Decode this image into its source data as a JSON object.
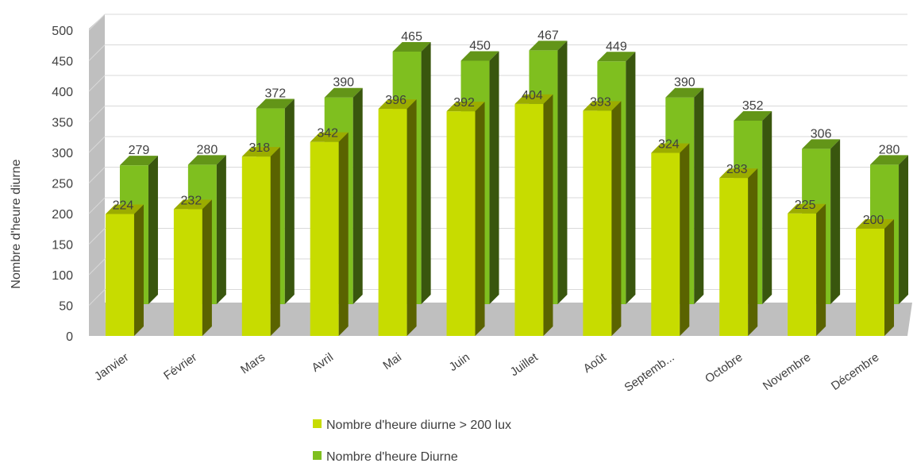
{
  "chart_data": {
    "type": "bar",
    "subtype": "3d-clustered-column",
    "title": "",
    "xlabel": "",
    "ylabel": "Nombre d'heure diurne",
    "ylim": [
      0,
      500
    ],
    "y_ticks": [
      0,
      50,
      100,
      150,
      200,
      250,
      300,
      350,
      400,
      450,
      500
    ],
    "grid": true,
    "legend_position": "bottom",
    "categories": [
      "Janvier",
      "Février",
      "Mars",
      "Avril",
      "Mai",
      "Juin",
      "Juillet",
      "Août",
      "Septemb...",
      "Octobre",
      "Novembre",
      "Décembre"
    ],
    "series": [
      {
        "name": "Nombre d'heure diurne > 200 lux",
        "color": "#c7dc00",
        "values": [
          224,
          232,
          318,
          342,
          396,
          392,
          404,
          393,
          324,
          283,
          225,
          200
        ]
      },
      {
        "name": "Nombre d'heure Diurne",
        "color": "#7fbf1f",
        "values": [
          279,
          280,
          372,
          390,
          465,
          450,
          467,
          449,
          390,
          352,
          306,
          280
        ]
      }
    ]
  }
}
